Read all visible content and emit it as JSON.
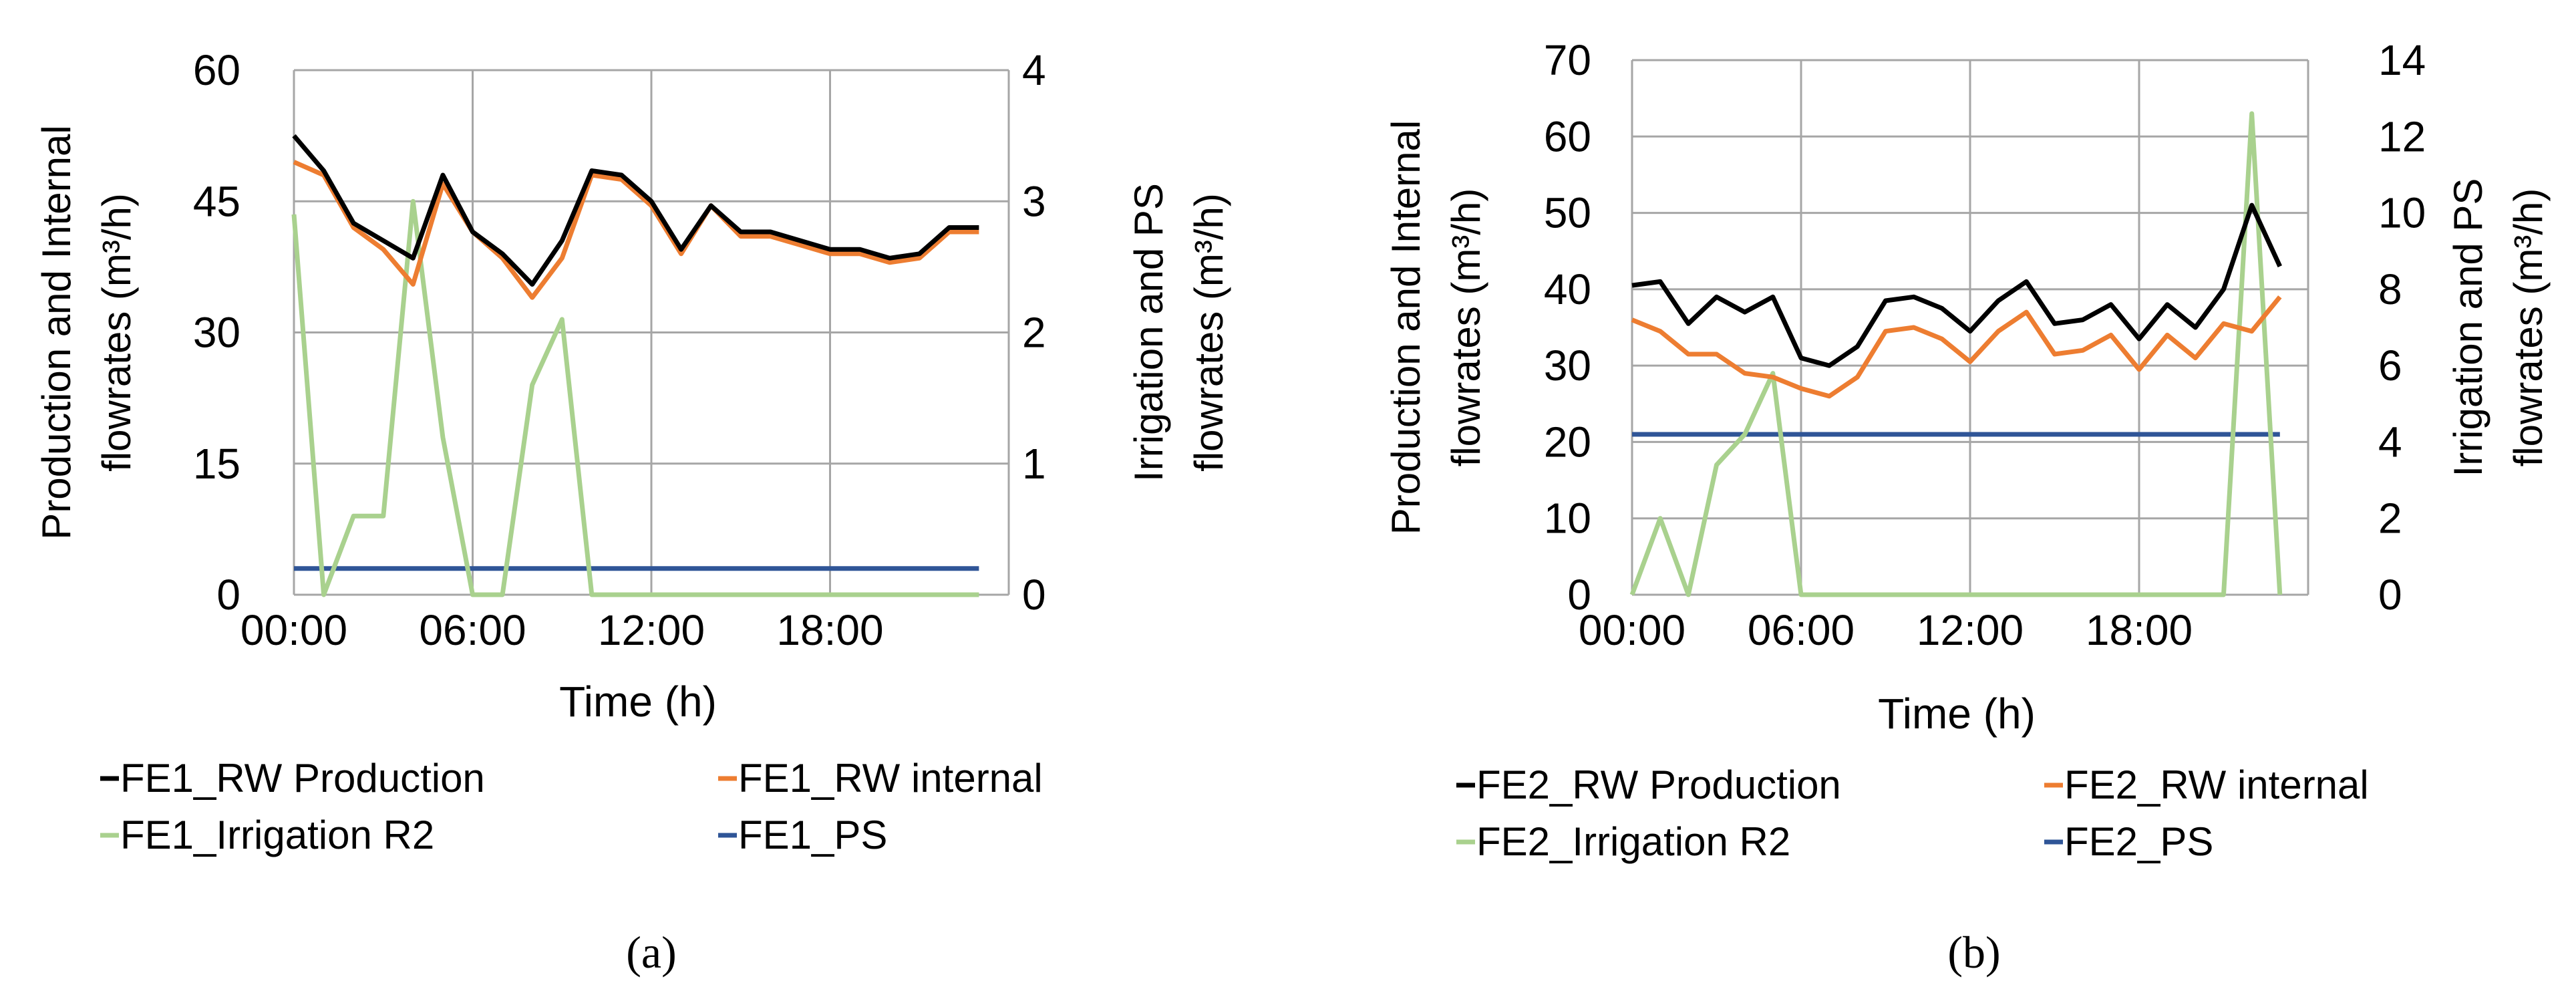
{
  "chart_data": [
    {
      "type": "line",
      "panel_label": "(a)",
      "xlabel": "Time (h)",
      "ylabel_left_line1": "Production and Internal",
      "ylabel_left_line2": "flowrates (m³/h)",
      "ylabel_right_line1": "Irrigation and PS",
      "ylabel_right_line2": "flowrates (m³/h)",
      "xlim": [
        0,
        24
      ],
      "ylim_left": [
        0,
        60
      ],
      "ylim_right": [
        0,
        4
      ],
      "left_ticks": [
        0,
        15,
        30,
        45,
        60
      ],
      "right_ticks": [
        0,
        1,
        2,
        3,
        4
      ],
      "x_ticks": [
        0,
        6,
        12,
        18
      ],
      "x_tick_labels": [
        "00:00",
        "06:00",
        "12:00",
        "18:00"
      ],
      "grid": true,
      "x": [
        0,
        1,
        2,
        3,
        4,
        5,
        6,
        7,
        8,
        9,
        10,
        11,
        12,
        13,
        14,
        15,
        16,
        17,
        18,
        19,
        20,
        21,
        22,
        23
      ],
      "series": [
        {
          "name": "FE1_RW Production",
          "legend_label": "FE1_RW Production",
          "axis": "left",
          "color": "#000000",
          "values": [
            52.5,
            48.5,
            42.5,
            40.5,
            38.5,
            48,
            41.5,
            39,
            35.5,
            40.5,
            48.5,
            48,
            45,
            39.5,
            44.5,
            41.5,
            41.5,
            40.5,
            39.5,
            39.5,
            38.5,
            39,
            42,
            42
          ]
        },
        {
          "name": "FE1_RW internal",
          "legend_label": "FE1_RW internal",
          "axis": "left",
          "color": "#ED7D31",
          "values": [
            49.5,
            48,
            42,
            39.5,
            35.5,
            47,
            41.5,
            38.5,
            34,
            38.5,
            48,
            47.5,
            44.5,
            39,
            44.5,
            41,
            41,
            40,
            39,
            39,
            38,
            38.5,
            41.5,
            41.5
          ]
        },
        {
          "name": "FE1_Irrigation R2",
          "legend_label": "FE1_Irrigation R2",
          "axis": "right",
          "color": "#A9D18E",
          "values": [
            2.9,
            0,
            0.6,
            0.6,
            3.0,
            1.2,
            0,
            0,
            1.6,
            2.1,
            0,
            0,
            0,
            0,
            0,
            0,
            0,
            0,
            0,
            0,
            0,
            0,
            0,
            0
          ]
        },
        {
          "name": "FE1_PS",
          "legend_label": "FE1_PS",
          "axis": "right",
          "color": "#2F5597",
          "values": [
            0.2,
            0.2,
            0.2,
            0.2,
            0.2,
            0.2,
            0.2,
            0.2,
            0.2,
            0.2,
            0.2,
            0.2,
            0.2,
            0.2,
            0.2,
            0.2,
            0.2,
            0.2,
            0.2,
            0.2,
            0.2,
            0.2,
            0.2,
            0.2
          ]
        }
      ]
    },
    {
      "type": "line",
      "panel_label": "(b)",
      "xlabel": "Time (h)",
      "ylabel_left_line1": "Production and Internal",
      "ylabel_left_line2": "flowrates (m³/h)",
      "ylabel_right_line1": "Irrigation and PS",
      "ylabel_right_line2": "flowrates (m³/h)",
      "xlim": [
        0,
        24
      ],
      "ylim_left": [
        0,
        70
      ],
      "ylim_right": [
        0,
        14
      ],
      "left_ticks": [
        0,
        10,
        20,
        30,
        40,
        50,
        60,
        70
      ],
      "right_ticks": [
        0,
        2,
        4,
        6,
        8,
        10,
        12,
        14
      ],
      "x_ticks": [
        0,
        6,
        12,
        18
      ],
      "x_tick_labels": [
        "00:00",
        "06:00",
        "12:00",
        "18:00"
      ],
      "grid": true,
      "x": [
        0,
        1,
        2,
        3,
        4,
        5,
        6,
        7,
        8,
        9,
        10,
        11,
        12,
        13,
        14,
        15,
        16,
        17,
        18,
        19,
        20,
        21,
        22,
        23
      ],
      "series": [
        {
          "name": "FE2_RW Production",
          "legend_label": "FE2_RW Production",
          "axis": "left",
          "color": "#000000",
          "values": [
            40.5,
            41,
            35.5,
            39,
            37,
            39,
            31,
            30,
            32.5,
            38.5,
            39,
            37.5,
            34.5,
            38.5,
            41,
            35.5,
            36,
            38,
            33.5,
            38,
            35,
            40,
            51,
            43
          ]
        },
        {
          "name": "FE2_RW internal",
          "legend_label": "FE2_RW internal",
          "axis": "left",
          "color": "#ED7D31",
          "values": [
            36,
            34.5,
            31.5,
            31.5,
            29,
            28.5,
            27,
            26,
            28.5,
            34.5,
            35,
            33.5,
            30.5,
            34.5,
            37,
            31.5,
            32,
            34,
            29.5,
            34,
            31,
            35.5,
            34.5,
            39
          ]
        },
        {
          "name": "FE2_Irrigation R2",
          "legend_label": "FE2_Irrigation R2",
          "axis": "right",
          "color": "#A9D18E",
          "values": [
            0,
            2,
            0,
            3.4,
            4.2,
            5.8,
            0,
            0,
            0,
            0,
            0,
            0,
            0,
            0,
            0,
            0,
            0,
            0,
            0,
            0,
            0,
            0,
            12.6,
            0
          ]
        },
        {
          "name": "FE2_PS",
          "legend_label": "FE2_PS",
          "axis": "right",
          "color": "#2F5597",
          "values": [
            4.2,
            4.2,
            4.2,
            4.2,
            4.2,
            4.2,
            4.2,
            4.2,
            4.2,
            4.2,
            4.2,
            4.2,
            4.2,
            4.2,
            4.2,
            4.2,
            4.2,
            4.2,
            4.2,
            4.2,
            4.2,
            4.2,
            4.2,
            4.2
          ]
        }
      ]
    }
  ]
}
